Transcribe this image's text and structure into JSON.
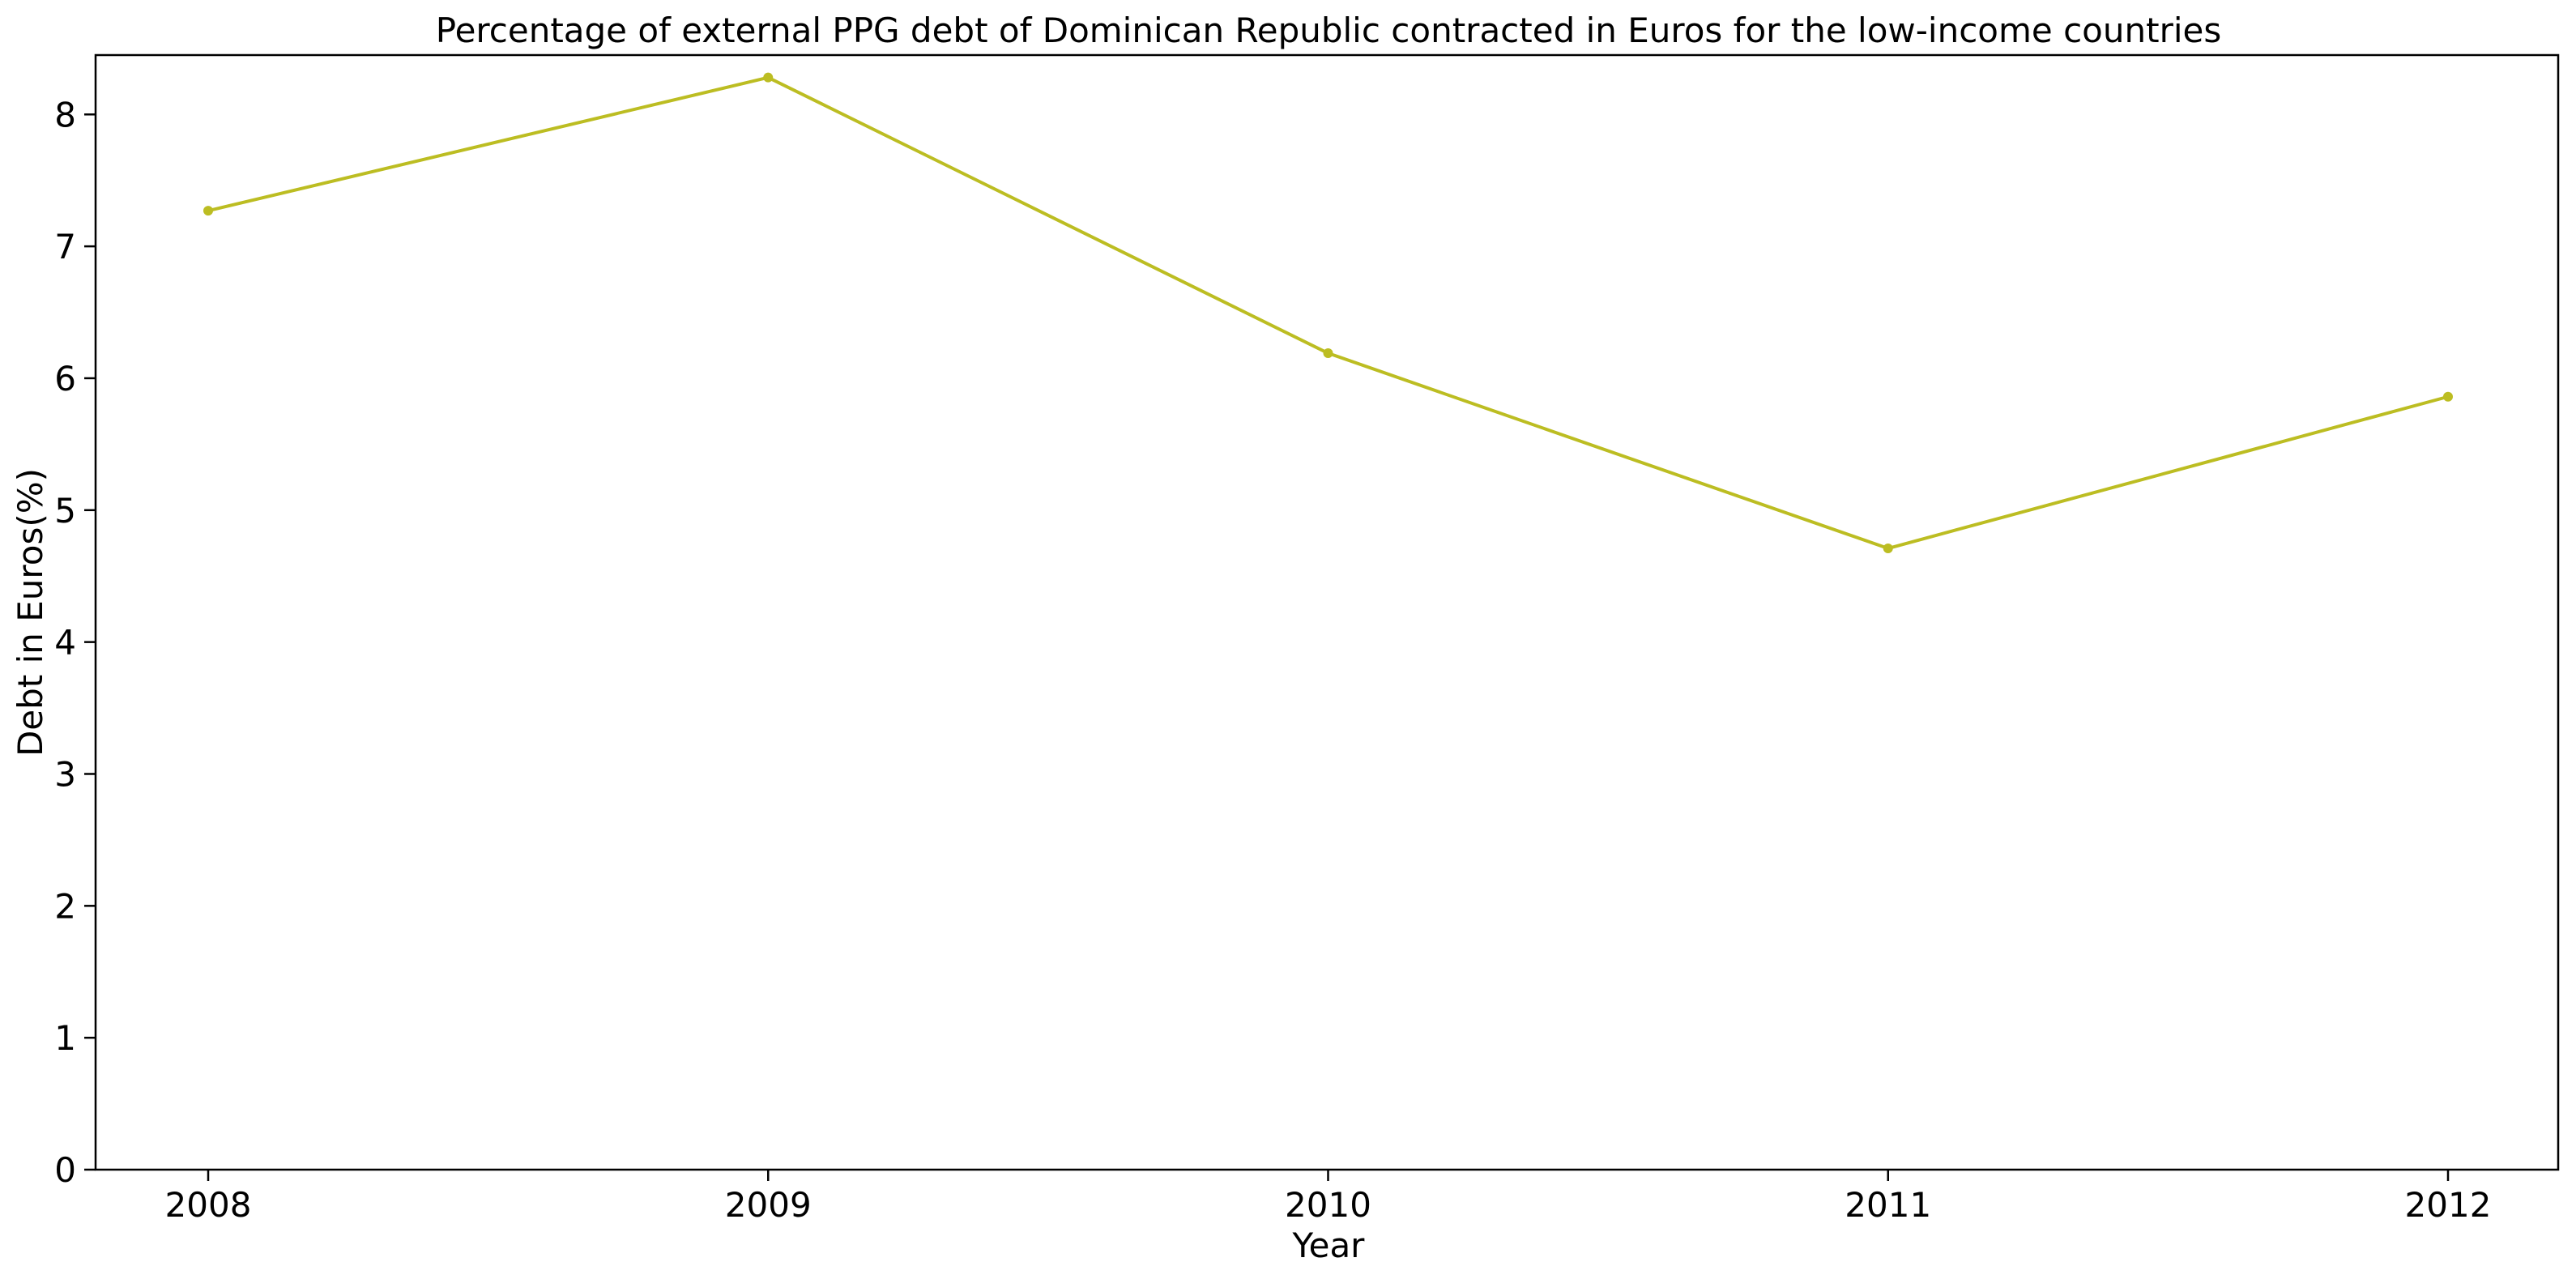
{
  "chart_data": {
    "type": "line",
    "title": "Percentage of external PPG debt of Dominican Republic contracted in Euros for the low-income countries",
    "xlabel": "Year",
    "ylabel": "Debt in Euros(%)",
    "x": [
      "2008",
      "2009",
      "2010",
      "2011",
      "2012"
    ],
    "series": [
      {
        "values": [
          7.27,
          8.28,
          6.19,
          4.71,
          5.86
        ],
        "color": "#bcbd22"
      }
    ],
    "ylim": [
      0,
      8.45
    ],
    "yticks": [
      "0",
      "1",
      "2",
      "3",
      "4",
      "5",
      "6",
      "7",
      "8"
    ],
    "grid": false,
    "legend": "none"
  }
}
